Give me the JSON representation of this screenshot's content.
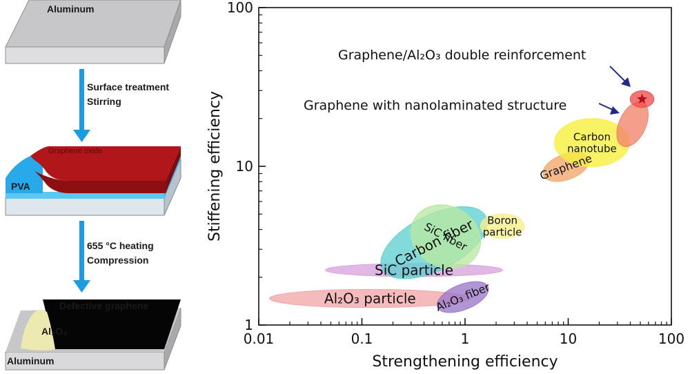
{
  "process": {
    "top_label": "Aluminum",
    "step1_lines": [
      "Surface treatment",
      "Stirring"
    ],
    "coating_label": "Graphene oxide",
    "pva_label": "PVA",
    "step2_lines": [
      "655 °C heating",
      "Compression"
    ],
    "defective_label": "Defective graphene",
    "al2o3_label": "Al₂O₃",
    "bottom_label": "Aluminum"
  },
  "chart_data": {
    "type": "scatter",
    "xlabel": "Strengthening efficiency",
    "ylabel": "Stiffening efficiency",
    "x_scale": "log",
    "y_scale": "log",
    "xlim": [
      0.01,
      100
    ],
    "ylim": [
      1,
      100
    ],
    "x_ticks": [
      "0.01",
      "0.1",
      "1",
      "10",
      "100"
    ],
    "y_ticks": [
      "1",
      "10",
      "100"
    ],
    "regions": [
      {
        "name": "Al₂O₃ particle",
        "lines": [
          "Al₂O₃ particle"
        ],
        "x_center": 0.12,
        "y_center": 1.47,
        "x_range": [
          0.014,
          1.25
        ],
        "y_range": [
          1.29,
          1.68
        ],
        "color": "#f2a6a8",
        "angle": 0
      },
      {
        "name": "SiC particle",
        "lines": [
          "SiC particle"
        ],
        "x_center": 0.32,
        "y_center": 2.22,
        "x_range": [
          0.045,
          2.35
        ],
        "y_range": [
          2.02,
          2.44
        ],
        "color": "#d9a3df",
        "angle": 0
      },
      {
        "name": "Carbon fiber",
        "lines": [
          "Carbon fiber"
        ],
        "x_center": 0.5,
        "y_center": 3.3,
        "x_range": [
          0.12,
          1.6
        ],
        "y_range": [
          2.2,
          4.9
        ],
        "color": "#5fd0cf",
        "angle": -27
      },
      {
        "name": "SiC fiber",
        "lines": [
          "SiC fiber"
        ],
        "x_center": 0.65,
        "y_center": 3.6,
        "x_range": [
          0.3,
          1.5
        ],
        "y_range": [
          2.3,
          5.6
        ],
        "color": "#b8e8a0",
        "angle": 28
      },
      {
        "name": "Boron particle",
        "lines": [
          "Boron",
          "particle"
        ],
        "x_center": 2.3,
        "y_center": 4.2,
        "x_range": [
          1.4,
          3.7
        ],
        "y_range": [
          3.5,
          5.0
        ],
        "color": "#f8f08a",
        "angle": 0
      },
      {
        "name": "Al₂O₃ fiber",
        "lines": [
          "Al₂O₃ fiber"
        ],
        "x_center": 0.95,
        "y_center": 1.5,
        "x_range": [
          0.55,
          1.85
        ],
        "y_range": [
          1.25,
          1.8
        ],
        "color": "#9b78c9",
        "angle": -22
      },
      {
        "name": "Graphene",
        "lines": [
          "Graphene"
        ],
        "x_center": 9.5,
        "y_center": 9.9,
        "x_range": [
          5.5,
          16
        ],
        "y_range": [
          8.3,
          12
        ],
        "color": "#f1a76a",
        "angle": -20
      },
      {
        "name": "Carbon nanotube",
        "lines": [
          "Carbon",
          "nanotube"
        ],
        "x_center": 17,
        "y_center": 14.1,
        "x_range": [
          7.5,
          40
        ],
        "y_range": [
          10,
          20
        ],
        "color": "#f6ef3a",
        "angle": 0
      },
      {
        "name": "Graphene with nanolaminated structure",
        "lines": [],
        "x_center": 42,
        "y_center": 18.4,
        "x_range": [
          32,
          58
        ],
        "y_range": [
          13,
          26
        ],
        "color": "#f2836a",
        "angle": 25
      },
      {
        "name": "Graphene/Al₂O₃ double reinforcement",
        "lines": [],
        "x_center": 52,
        "y_center": 26.5,
        "x_range": [
          40,
          68
        ],
        "y_range": [
          23.5,
          30
        ],
        "color": "#ee4e4e",
        "angle": 0
      }
    ],
    "annotations": [
      {
        "text": "Graphene/Al₂O₃ double reinforcement",
        "points_to": "Graphene/Al₂O₃ double reinforcement"
      },
      {
        "text": "Graphene with nanolaminated structure",
        "points_to": "Graphene with nanolaminated structure"
      }
    ]
  }
}
